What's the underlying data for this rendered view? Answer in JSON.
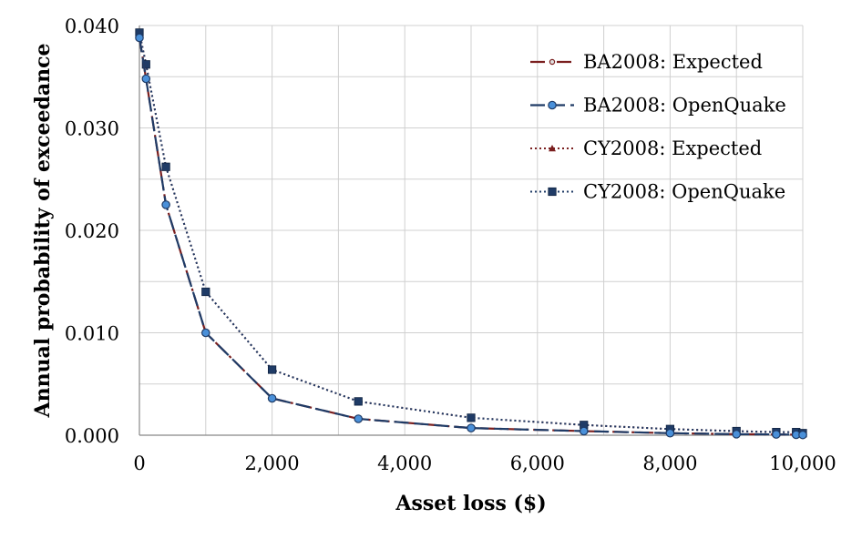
{
  "chart_data": {
    "type": "line",
    "title": "",
    "xlabel": "Asset loss ($)",
    "ylabel": "Annual probability of exceedance",
    "xlim": [
      0,
      10000
    ],
    "ylim": [
      0,
      0.04
    ],
    "x_ticks": [
      0,
      2000,
      4000,
      6000,
      8000,
      10000
    ],
    "x_tick_labels": [
      "0",
      "2,000",
      "4,000",
      "6,000",
      "8,000",
      "10,000"
    ],
    "y_ticks": [
      0,
      0.01,
      0.02,
      0.03,
      0.04
    ],
    "y_tick_labels": [
      "0.000",
      "0.010",
      "0.020",
      "0.030",
      "0.040"
    ],
    "grid": true,
    "legend_position": "top-right",
    "series": [
      {
        "name": "BA2008: Expected",
        "color": "#7a1f1f",
        "line_style": "long-dash-dot",
        "marker": "small-circle",
        "x": [
          0,
          100,
          400,
          1000,
          2000,
          3300,
          5000,
          6700,
          8000,
          9000,
          9600,
          9900,
          10000
        ],
        "y": [
          0.0388,
          0.0348,
          0.0225,
          0.01,
          0.0036,
          0.0016,
          0.0007,
          0.0004,
          0.0002,
          0.0001,
          8e-05,
          5e-05,
          3e-05
        ]
      },
      {
        "name": "BA2008: OpenQuake",
        "color": "#1f3b66",
        "marker_fill": "#4a90d9",
        "line_style": "long-dash",
        "marker": "circle",
        "x": [
          0,
          100,
          400,
          1000,
          2000,
          3300,
          5000,
          6700,
          8000,
          9000,
          9600,
          9900,
          10000
        ],
        "y": [
          0.0388,
          0.0348,
          0.0225,
          0.01,
          0.0036,
          0.0016,
          0.0007,
          0.0004,
          0.0002,
          0.0001,
          8e-05,
          5e-05,
          3e-05
        ]
      },
      {
        "name": "CY2008: Expected",
        "color": "#7a1f1f",
        "line_style": "dotted",
        "marker": "triangle",
        "x": [
          0,
          100,
          400,
          1000,
          2000,
          3300,
          5000,
          6700,
          8000,
          9000,
          9600,
          9900,
          10000
        ],
        "y": [
          0.0393,
          0.0362,
          0.0262,
          0.014,
          0.0064,
          0.0033,
          0.0017,
          0.001,
          0.0006,
          0.0004,
          0.0003,
          0.0003,
          0.0002
        ]
      },
      {
        "name": "CY2008: OpenQuake",
        "color": "#1f3b66",
        "line_style": "dotted",
        "marker": "square",
        "x": [
          0,
          100,
          400,
          1000,
          2000,
          3300,
          5000,
          6700,
          8000,
          9000,
          9600,
          9900,
          10000
        ],
        "y": [
          0.0393,
          0.0362,
          0.0262,
          0.014,
          0.0064,
          0.0033,
          0.0017,
          0.001,
          0.0006,
          0.0004,
          0.0003,
          0.0003,
          0.0002
        ]
      }
    ]
  }
}
